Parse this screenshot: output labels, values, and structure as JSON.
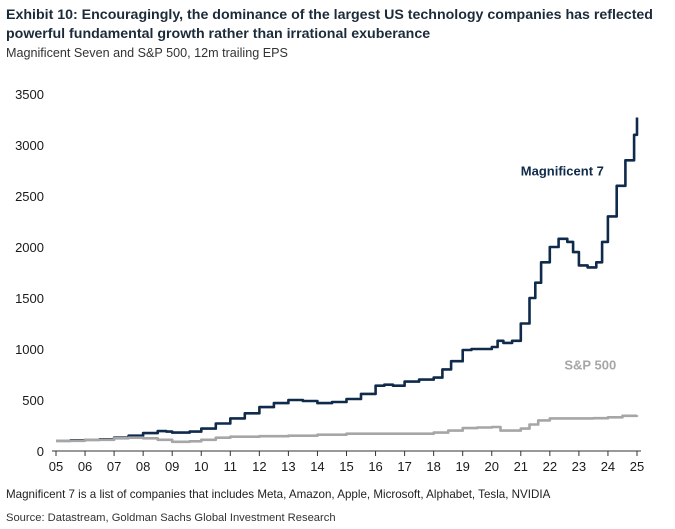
{
  "title": "Exhibit 10: Encouragingly, the dominance of the largest US technology companies has reflected powerful fundamental growth rather than irrational exuberance",
  "subtitle": "Magnificent Seven and S&P 500, 12m trailing EPS",
  "footnote": "Magnificent 7 is a list of companies that includes Meta, Amazon, Apple, Microsoft, Alphabet, Tesla, NVIDIA",
  "source": "Source: Datastream, Goldman Sachs Global Investment Research",
  "chart_data": {
    "type": "line",
    "title": "Magnificent Seven and S&P 500, 12m trailing EPS",
    "xlabel": "",
    "ylabel": "",
    "xlim": [
      2005,
      2025
    ],
    "ylim": [
      0,
      3500
    ],
    "x_tick_values": [
      2005,
      2006,
      2007,
      2008,
      2009,
      2010,
      2011,
      2012,
      2013,
      2014,
      2015,
      2016,
      2017,
      2018,
      2019,
      2020,
      2021,
      2022,
      2023,
      2024,
      2025
    ],
    "x_tick_labels": [
      "05",
      "06",
      "07",
      "08",
      "09",
      "10",
      "11",
      "12",
      "13",
      "14",
      "15",
      "16",
      "17",
      "18",
      "19",
      "20",
      "21",
      "22",
      "23",
      "24",
      "25"
    ],
    "y_tick_values": [
      0,
      500,
      1000,
      1500,
      2000,
      2500,
      3000,
      3500
    ],
    "y_tick_labels": [
      "0",
      "500",
      "1000",
      "1500",
      "2000",
      "2500",
      "3000",
      "3500"
    ],
    "grid": false,
    "series": [
      {
        "name": "Magnificent 7",
        "color": "#0f2a4a",
        "x": [
          2005.0,
          2005.5,
          2006.0,
          2006.5,
          2007.0,
          2007.5,
          2008.0,
          2008.5,
          2008.8,
          2009.0,
          2009.3,
          2009.6,
          2010.0,
          2010.5,
          2011.0,
          2011.5,
          2012.0,
          2012.5,
          2013.0,
          2013.5,
          2014.0,
          2014.5,
          2015.0,
          2015.5,
          2016.0,
          2016.3,
          2016.6,
          2017.0,
          2017.5,
          2018.0,
          2018.3,
          2018.6,
          2019.0,
          2019.3,
          2019.6,
          2020.0,
          2020.2,
          2020.4,
          2020.7,
          2021.0,
          2021.3,
          2021.5,
          2021.7,
          2022.0,
          2022.3,
          2022.6,
          2022.8,
          2023.0,
          2023.3,
          2023.6,
          2023.8,
          2024.0,
          2024.3,
          2024.6,
          2024.9,
          2025.0
        ],
        "values": [
          100,
          105,
          110,
          115,
          130,
          150,
          175,
          195,
          190,
          180,
          180,
          190,
          220,
          270,
          320,
          370,
          430,
          470,
          500,
          490,
          470,
          480,
          510,
          560,
          640,
          650,
          640,
          680,
          700,
          720,
          800,
          880,
          990,
          1000,
          1000,
          1020,
          1080,
          1060,
          1080,
          1250,
          1500,
          1650,
          1850,
          2000,
          2080,
          2050,
          1950,
          1820,
          1800,
          1850,
          2050,
          2300,
          2600,
          2850,
          3100,
          3270
        ]
      },
      {
        "name": "S&P 500",
        "color": "#a6a6a6",
        "x": [
          2005.0,
          2006.0,
          2007.0,
          2007.5,
          2008.0,
          2008.5,
          2009.0,
          2009.3,
          2009.6,
          2010.0,
          2010.5,
          2011.0,
          2012.0,
          2013.0,
          2014.0,
          2015.0,
          2016.0,
          2017.0,
          2018.0,
          2018.5,
          2019.0,
          2019.5,
          2020.0,
          2020.3,
          2020.6,
          2021.0,
          2021.3,
          2021.6,
          2022.0,
          2022.5,
          2023.0,
          2023.5,
          2024.0,
          2024.5,
          2025.0
        ],
        "values": [
          100,
          110,
          125,
          130,
          125,
          110,
          90,
          90,
          95,
          110,
          130,
          140,
          145,
          150,
          160,
          170,
          170,
          170,
          180,
          200,
          225,
          230,
          235,
          200,
          200,
          220,
          260,
          300,
          320,
          320,
          320,
          322,
          330,
          345,
          350
        ]
      }
    ],
    "annotations": [
      {
        "text": "Magnificent 7",
        "x": 2021.0,
        "y": 2700,
        "color": "#0f2a4a"
      },
      {
        "text": "S&P 500",
        "x": 2022.5,
        "y": 800,
        "color": "#a6a6a6"
      }
    ]
  }
}
